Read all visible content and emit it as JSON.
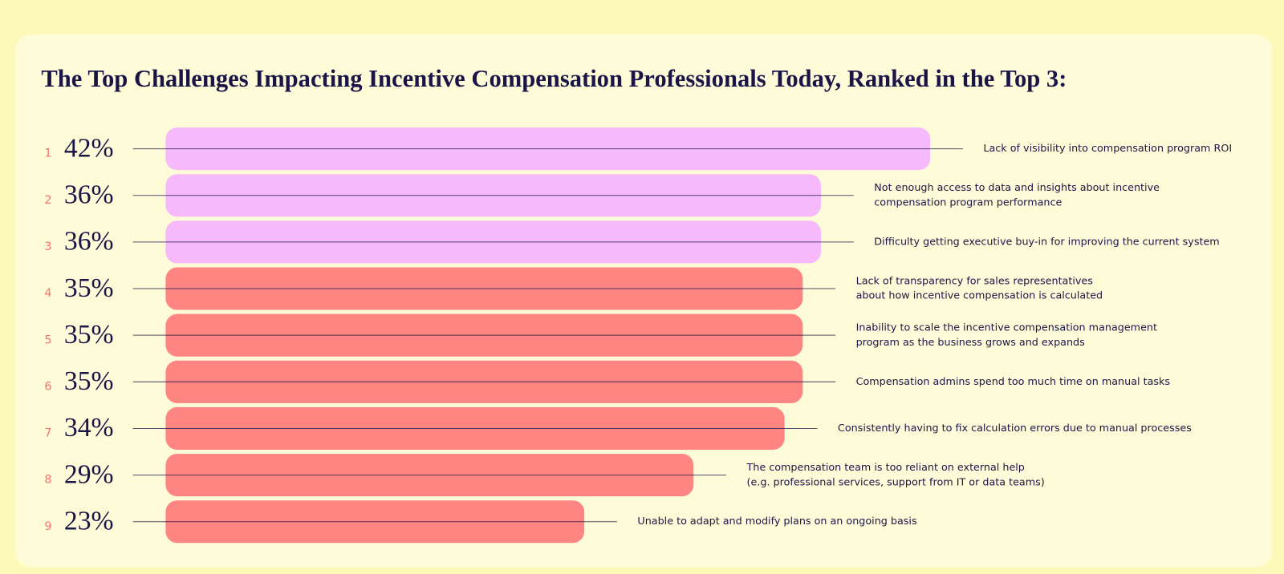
{
  "chart_data": {
    "type": "bar",
    "title": "The Top Challenges Impacting Incentive Compensation Professionals Today, Ranked in the Top 3:",
    "ranks": [
      "1",
      "2",
      "3",
      "4",
      "5",
      "6",
      "7",
      "8",
      "9"
    ],
    "categories": [
      [
        "Lack of visibility into compensation program ROI"
      ],
      [
        "Not enough access to data and insights about incentive",
        "compensation program performance"
      ],
      [
        "Difficulty getting executive buy-in for improving the current system"
      ],
      [
        "Lack of transparency for sales representatives",
        "about how incentive compensation is calculated"
      ],
      [
        "Inability to scale the incentive compensation management",
        "program as the business grows and expands"
      ],
      [
        "Compensation admins spend too much time on manual tasks"
      ],
      [
        "Consistently having to fix calculation errors due to manual processes"
      ],
      [
        "The compensation team is too reliant on external help",
        "(e.g. professional services, support from IT or data teams)"
      ],
      [
        "Unable to adapt and modify plans on an ongoing basis"
      ]
    ],
    "values": [
      42,
      36,
      36,
      35,
      35,
      35,
      34,
      29,
      23
    ],
    "value_labels": [
      "42%",
      "36%",
      "36%",
      "35%",
      "35%",
      "35%",
      "34%",
      "29%",
      "23%"
    ],
    "colors": [
      "#f6b9fb",
      "#f6b9fb",
      "#f6b9fb",
      "#ff8583",
      "#ff8583",
      "#ff8583",
      "#ff8583",
      "#ff8583",
      "#ff8583"
    ]
  }
}
